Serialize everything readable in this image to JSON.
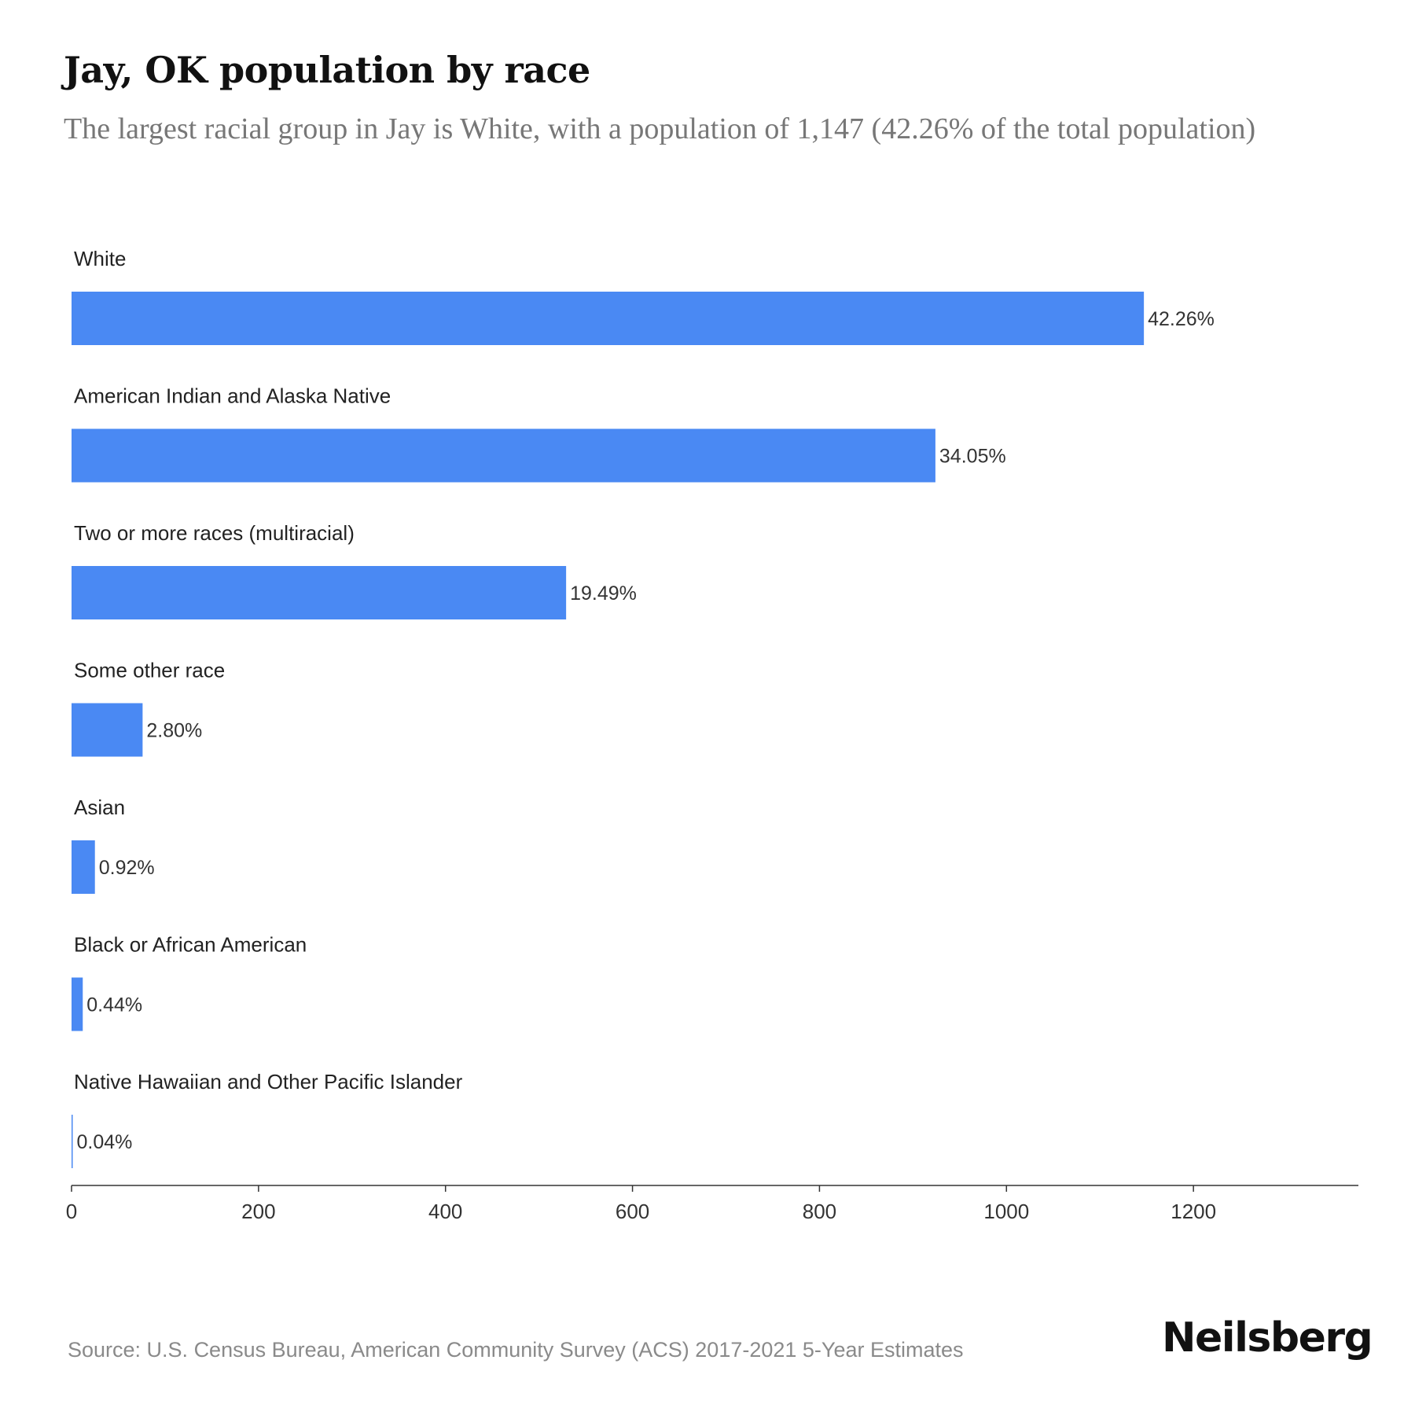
{
  "header": {
    "title": "Jay, OK population by race",
    "subtitle": "The largest racial group in Jay is White, with a population of 1,147 (42.26% of the total population)"
  },
  "chart_data": {
    "type": "bar",
    "orientation": "horizontal",
    "categories": [
      "White",
      "American Indian and Alaska Native",
      "Two or more races (multiracial)",
      "Some other race",
      "Asian",
      "Black or African American",
      "Native Hawaiian and Other Pacific Islander"
    ],
    "values": [
      1147,
      924,
      529,
      76,
      25,
      12,
      1
    ],
    "value_labels": [
      "42.26%",
      "34.05%",
      "19.49%",
      "2.80%",
      "0.92%",
      "0.44%",
      "0.04%"
    ],
    "xlim": [
      0,
      1375
    ],
    "x_ticks": [
      0,
      200,
      400,
      600,
      800,
      1000,
      1200
    ],
    "bar_color": "#4a89f3",
    "grid": false
  },
  "footer": {
    "source": "Source: U.S. Census Bureau, American Community Survey (ACS) 2017-2021 5-Year Estimates",
    "brand": "Neilsberg"
  }
}
